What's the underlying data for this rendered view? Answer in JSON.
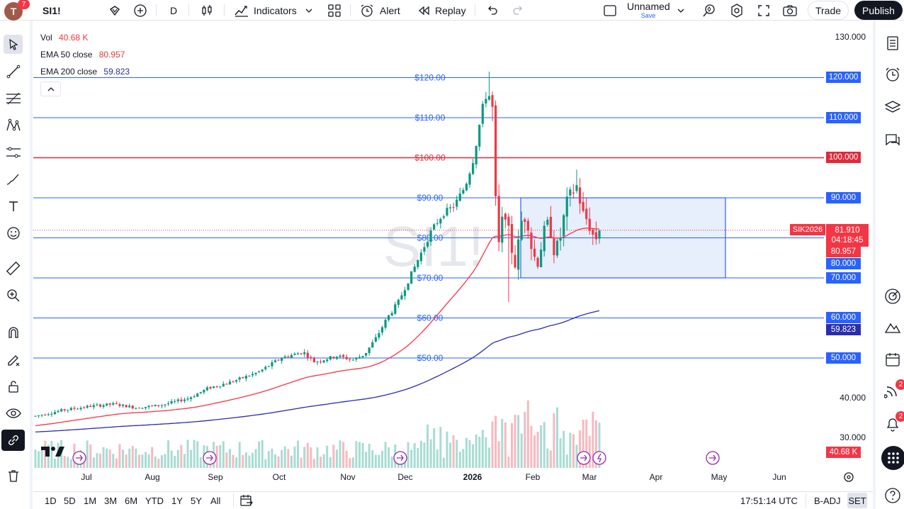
{
  "toolbar": {
    "avatar_letter": "T",
    "avatar_badge": "7",
    "symbol": "SI1!",
    "interval": "D",
    "indicators_label": "Indicators",
    "alert_label": "Alert",
    "replay_label": "Replay",
    "layout_name": "Unnamed",
    "layout_save": "Save",
    "trade_label": "Trade",
    "publish_label": "Publish"
  },
  "legend": {
    "vol_label": "Vol",
    "vol_value": "40.68 K",
    "ema50_label": "EMA 50 close",
    "ema50_value": "80.957",
    "ema200_label": "EMA 200 close",
    "ema200_value": "59.823"
  },
  "watermark": "SI1!",
  "price_axis": {
    "ticks": [
      "130.000",
      "40.000",
      "30.000"
    ],
    "level_labels": [
      "120.000",
      "110.000",
      "100.000",
      "90.000",
      "80.000",
      "70.000",
      "60.000",
      "50.000"
    ],
    "current_symbol": "SIK2026",
    "current_price": "81.910",
    "countdown": "04:18:45",
    "ema50_tag": "80.957",
    "ema200_tag": "59.823",
    "vol_tag": "40.68 K"
  },
  "level_lines": [
    {
      "price": 120,
      "label": "$120.00",
      "color": "#2962ff"
    },
    {
      "price": 110,
      "label": "$110.00",
      "color": "#2962ff"
    },
    {
      "price": 100,
      "label": "$100.00",
      "color": "#e02a3a"
    },
    {
      "price": 90,
      "label": "$90.00",
      "color": "#2962ff"
    },
    {
      "price": 80,
      "label": "$80.00",
      "color": "#2962ff"
    },
    {
      "price": 70,
      "label": "$70.00",
      "color": "#2962ff"
    },
    {
      "price": 60,
      "label": "$60.00",
      "color": "#2962ff"
    },
    {
      "price": 50,
      "label": "$50.00",
      "color": "#2962ff"
    }
  ],
  "time_axis": [
    "Jul",
    "Aug",
    "Sep",
    "Oct",
    "Nov",
    "Dec",
    "2026",
    "Feb",
    "Mar",
    "Apr",
    "May",
    "Jun"
  ],
  "bottom": {
    "ranges": [
      "1D",
      "5D",
      "1M",
      "3M",
      "6M",
      "YTD",
      "1Y",
      "5Y",
      "All"
    ],
    "clock": "17:51:14 UTC",
    "badj": "B-ADJ",
    "set": "SET"
  },
  "right_badges": {
    "ideas": "2",
    "alerts": "2"
  },
  "colors": {
    "up": "#089981",
    "down": "#f23645",
    "level": "#2962ff",
    "red_level": "#e02a3a",
    "ema50": "#f23645",
    "ema200": "#2a2eac",
    "box_fill": "#e3ebfb",
    "box_stroke": "#2962ff"
  }
}
